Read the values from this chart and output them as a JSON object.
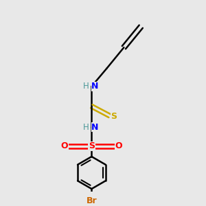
{
  "bg_color": "#e8e8e8",
  "line_color": "#000000",
  "atom_colors": {
    "N": "#0000ff",
    "S_thio": "#ccaa00",
    "S_sulf": "#ff0000",
    "O": "#ff0000",
    "Br": "#cc6600",
    "H": "#4d9999",
    "C": "#000000"
  },
  "fig_size": [
    3.0,
    3.0
  ],
  "dpi": 100
}
